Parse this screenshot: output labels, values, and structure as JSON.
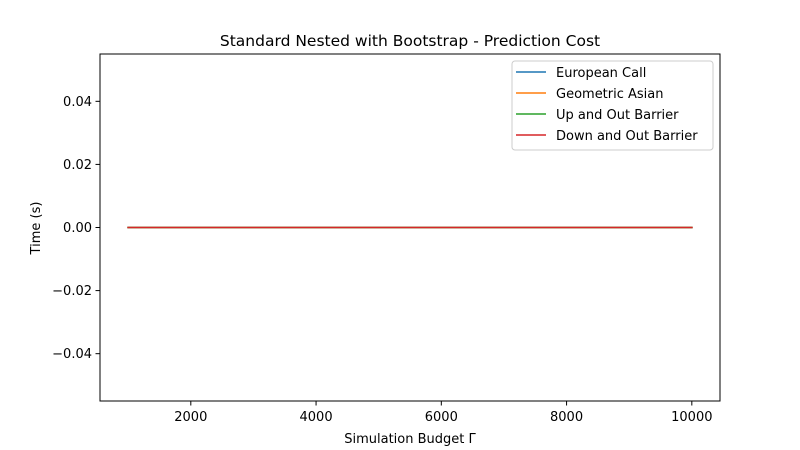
{
  "chart_data": {
    "type": "line",
    "title": "Standard Nested with Bootstrap - Prediction Cost",
    "xlabel": "Simulation Budget Γ",
    "ylabel": "Time (s)",
    "xlim": [
      550,
      10450
    ],
    "ylim": [
      -0.055,
      0.055
    ],
    "xticks": [
      2000,
      4000,
      6000,
      8000,
      10000
    ],
    "yticks": [
      0.04,
      0.02,
      0.0,
      -0.02,
      -0.04
    ],
    "xtick_labels": [
      "2000",
      "4000",
      "6000",
      "8000",
      "10000"
    ],
    "ytick_labels": [
      "0.04",
      "0.02",
      "0.00",
      "−0.02",
      "−0.04"
    ],
    "grid": false,
    "legend_position": "top-right",
    "x": [
      1000,
      10000
    ],
    "series": [
      {
        "name": "European Call",
        "color": "#1f77b4",
        "values": [
          0.0,
          0.0
        ]
      },
      {
        "name": "Geometric Asian",
        "color": "#ff7f0e",
        "values": [
          0.0,
          0.0
        ]
      },
      {
        "name": "Up and Out Barrier",
        "color": "#2ca02c",
        "values": [
          0.0,
          0.0
        ]
      },
      {
        "name": "Down and Out Barrier",
        "color": "#d62728",
        "values": [
          0.0,
          0.0
        ]
      }
    ]
  }
}
